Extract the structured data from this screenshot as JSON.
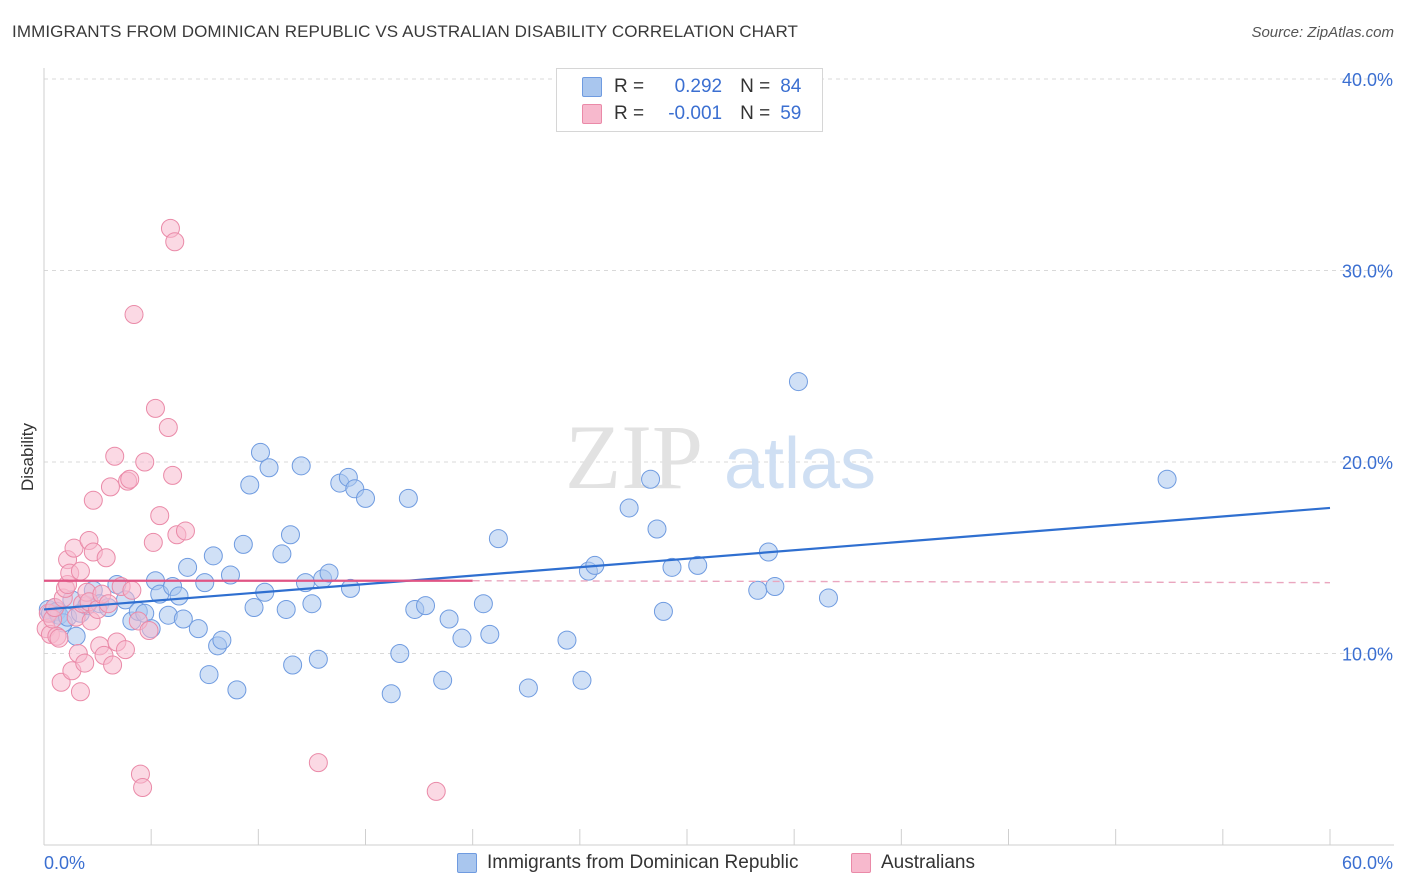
{
  "header": {
    "title": "IMMIGRANTS FROM DOMINICAN REPUBLIC VS AUSTRALIAN DISABILITY CORRELATION CHART",
    "source": "Source: ZipAtlas.com"
  },
  "watermark": {
    "zip": "ZIP",
    "atlas": "atlas"
  },
  "stats_legend": [
    {
      "r_label": "R =",
      "r_value": "0.292",
      "n_label": "N =",
      "n_value": "84"
    },
    {
      "r_label": "R =",
      "r_value": "-0.001",
      "n_label": "N =",
      "n_value": "59"
    }
  ],
  "bottom_legend": [
    {
      "label": "Immigrants from Dominican Republic"
    },
    {
      "label": "Australians"
    }
  ],
  "colors": {
    "blue_fill": "#a9c6ee",
    "blue_stroke": "#6f9be0",
    "blue_line": "#2f6fd0",
    "pink_fill": "#f7b9cd",
    "pink_stroke": "#ea8aa8",
    "pink_line": "#e05585",
    "tick_text": "#3b6fd1",
    "grid": "#d9d9d9"
  },
  "chart_data": {
    "type": "scatter",
    "title": "IMMIGRANTS FROM DOMINICAN REPUBLIC VS AUSTRALIAN DISABILITY CORRELATION CHART",
    "xlabel": "",
    "ylabel": "Disability",
    "xlim": [
      0,
      60
    ],
    "ylim": [
      0,
      40
    ],
    "x_tick_labels": [
      "0.0%",
      "60.0%"
    ],
    "y_ticks": [
      10,
      20,
      30,
      40
    ],
    "y_tick_labels": [
      "10.0%",
      "20.0%",
      "30.0%",
      "40.0%"
    ],
    "grid": true,
    "legend_position": "top-center",
    "series": [
      {
        "name": "Immigrants from Dominican Republic",
        "color": "#a9c6ee",
        "trend": {
          "x": [
            0,
            60
          ],
          "y": [
            12.3,
            17.6
          ]
        },
        "points": [
          [
            0.2,
            12.3
          ],
          [
            0.3,
            12.1
          ],
          [
            0.5,
            12.4
          ],
          [
            0.6,
            12.2
          ],
          [
            0.7,
            12.0
          ],
          [
            0.9,
            11.6
          ],
          [
            1.1,
            11.9
          ],
          [
            1.3,
            12.8
          ],
          [
            1.5,
            10.9
          ],
          [
            1.7,
            12.1
          ],
          [
            2.0,
            12.5
          ],
          [
            2.3,
            13.3
          ],
          [
            2.6,
            12.6
          ],
          [
            3.0,
            12.4
          ],
          [
            3.4,
            13.6
          ],
          [
            3.8,
            12.8
          ],
          [
            4.1,
            11.7
          ],
          [
            4.4,
            12.2
          ],
          [
            4.7,
            12.1
          ],
          [
            5.0,
            11.3
          ],
          [
            5.2,
            13.8
          ],
          [
            5.4,
            13.1
          ],
          [
            5.8,
            12.0
          ],
          [
            6.0,
            13.5
          ],
          [
            6.3,
            13.0
          ],
          [
            6.5,
            11.8
          ],
          [
            6.7,
            14.5
          ],
          [
            7.2,
            11.3
          ],
          [
            7.5,
            13.7
          ],
          [
            7.7,
            8.9
          ],
          [
            7.9,
            15.1
          ],
          [
            8.1,
            10.4
          ],
          [
            8.3,
            10.7
          ],
          [
            8.7,
            14.1
          ],
          [
            9.0,
            8.1
          ],
          [
            9.3,
            15.7
          ],
          [
            9.6,
            18.8
          ],
          [
            9.8,
            12.4
          ],
          [
            10.1,
            20.5
          ],
          [
            10.3,
            13.2
          ],
          [
            10.5,
            19.7
          ],
          [
            11.1,
            15.2
          ],
          [
            11.3,
            12.3
          ],
          [
            11.5,
            16.2
          ],
          [
            11.6,
            9.4
          ],
          [
            12.0,
            19.8
          ],
          [
            12.2,
            13.7
          ],
          [
            12.5,
            12.6
          ],
          [
            12.8,
            9.7
          ],
          [
            13.0,
            13.9
          ],
          [
            13.3,
            14.2
          ],
          [
            13.8,
            18.9
          ],
          [
            14.2,
            19.2
          ],
          [
            14.3,
            13.4
          ],
          [
            14.5,
            18.6
          ],
          [
            15.0,
            18.1
          ],
          [
            16.2,
            7.9
          ],
          [
            16.6,
            10.0
          ],
          [
            17.0,
            18.1
          ],
          [
            17.3,
            12.3
          ],
          [
            17.8,
            12.5
          ],
          [
            18.6,
            8.6
          ],
          [
            18.9,
            11.8
          ],
          [
            19.5,
            10.8
          ],
          [
            20.5,
            12.6
          ],
          [
            20.8,
            11.0
          ],
          [
            21.2,
            16.0
          ],
          [
            22.6,
            8.2
          ],
          [
            24.4,
            10.7
          ],
          [
            25.1,
            8.6
          ],
          [
            25.4,
            14.3
          ],
          [
            25.7,
            14.6
          ],
          [
            27.3,
            17.6
          ],
          [
            28.3,
            19.1
          ],
          [
            28.6,
            16.5
          ],
          [
            28.9,
            12.2
          ],
          [
            29.3,
            14.5
          ],
          [
            30.5,
            14.6
          ],
          [
            33.3,
            13.3
          ],
          [
            33.8,
            15.3
          ],
          [
            34.1,
            13.5
          ],
          [
            35.2,
            24.2
          ],
          [
            36.6,
            12.9
          ],
          [
            52.4,
            19.1
          ]
        ]
      },
      {
        "name": "Australians",
        "color": "#f7b9cd",
        "trend": {
          "x": [
            0,
            20
          ],
          "y": [
            13.8,
            13.8
          ]
        },
        "trend_dashed": {
          "x": [
            20,
            60
          ],
          "y": [
            13.8,
            13.7
          ]
        },
        "points": [
          [
            0.1,
            11.3
          ],
          [
            0.2,
            12.1
          ],
          [
            0.3,
            11.0
          ],
          [
            0.4,
            11.8
          ],
          [
            0.5,
            12.4
          ],
          [
            0.6,
            10.9
          ],
          [
            0.7,
            10.8
          ],
          [
            0.8,
            8.5
          ],
          [
            0.9,
            12.9
          ],
          [
            1.0,
            13.4
          ],
          [
            1.1,
            13.6
          ],
          [
            1.1,
            14.9
          ],
          [
            1.2,
            14.2
          ],
          [
            1.3,
            9.1
          ],
          [
            1.4,
            15.5
          ],
          [
            1.5,
            11.9
          ],
          [
            1.6,
            10.0
          ],
          [
            1.7,
            14.3
          ],
          [
            1.7,
            8.0
          ],
          [
            1.8,
            12.6
          ],
          [
            1.9,
            9.5
          ],
          [
            2.0,
            13.2
          ],
          [
            2.1,
            15.9
          ],
          [
            2.1,
            12.7
          ],
          [
            2.2,
            11.7
          ],
          [
            2.3,
            15.3
          ],
          [
            2.3,
            18.0
          ],
          [
            2.5,
            12.3
          ],
          [
            2.6,
            10.4
          ],
          [
            2.7,
            13.1
          ],
          [
            2.8,
            9.9
          ],
          [
            2.9,
            15.0
          ],
          [
            3.0,
            12.6
          ],
          [
            3.1,
            18.7
          ],
          [
            3.2,
            9.4
          ],
          [
            3.3,
            20.3
          ],
          [
            3.4,
            10.6
          ],
          [
            3.6,
            13.5
          ],
          [
            3.8,
            10.2
          ],
          [
            3.9,
            19.0
          ],
          [
            4.0,
            19.1
          ],
          [
            4.1,
            13.3
          ],
          [
            4.2,
            27.7
          ],
          [
            4.4,
            11.7
          ],
          [
            4.5,
            3.7
          ],
          [
            4.6,
            3.0
          ],
          [
            4.7,
            20.0
          ],
          [
            4.9,
            11.2
          ],
          [
            5.1,
            15.8
          ],
          [
            5.2,
            22.8
          ],
          [
            5.4,
            17.2
          ],
          [
            5.8,
            21.8
          ],
          [
            5.9,
            32.2
          ],
          [
            6.0,
            19.3
          ],
          [
            6.1,
            31.5
          ],
          [
            6.2,
            16.2
          ],
          [
            6.6,
            16.4
          ],
          [
            12.8,
            4.3
          ],
          [
            18.3,
            2.8
          ]
        ]
      }
    ]
  }
}
